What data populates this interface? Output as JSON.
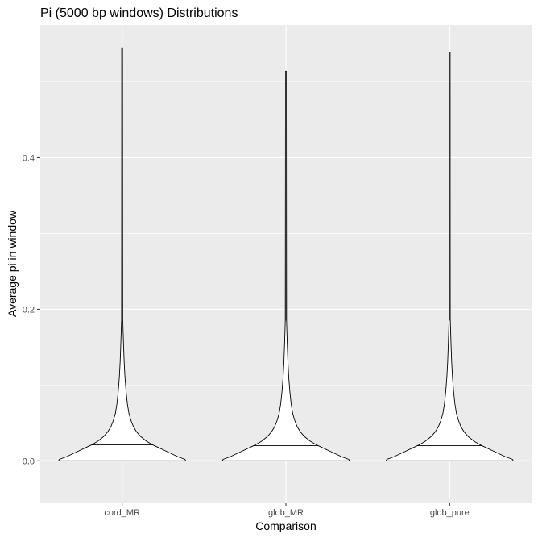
{
  "chart_data": {
    "type": "violin",
    "title": "Pi (5000 bp windows) Distributions",
    "xlabel": "Comparison",
    "ylabel": "Average pi in window",
    "ylim": [
      -0.055,
      0.575
    ],
    "yticks": [
      0.0,
      0.2,
      0.4
    ],
    "ytick_labels": [
      "0.0",
      "0.2",
      "0.4"
    ],
    "categories": [
      "cord_MR",
      "glob_MR",
      "glob_pure"
    ],
    "grid": true,
    "legend": "none",
    "series": [
      {
        "min": 0.0,
        "max": 0.545,
        "median": 0.021
      },
      {
        "min": 0.0,
        "max": 0.514,
        "median": 0.02
      },
      {
        "min": 0.0,
        "max": 0.539,
        "median": 0.02
      }
    ]
  }
}
